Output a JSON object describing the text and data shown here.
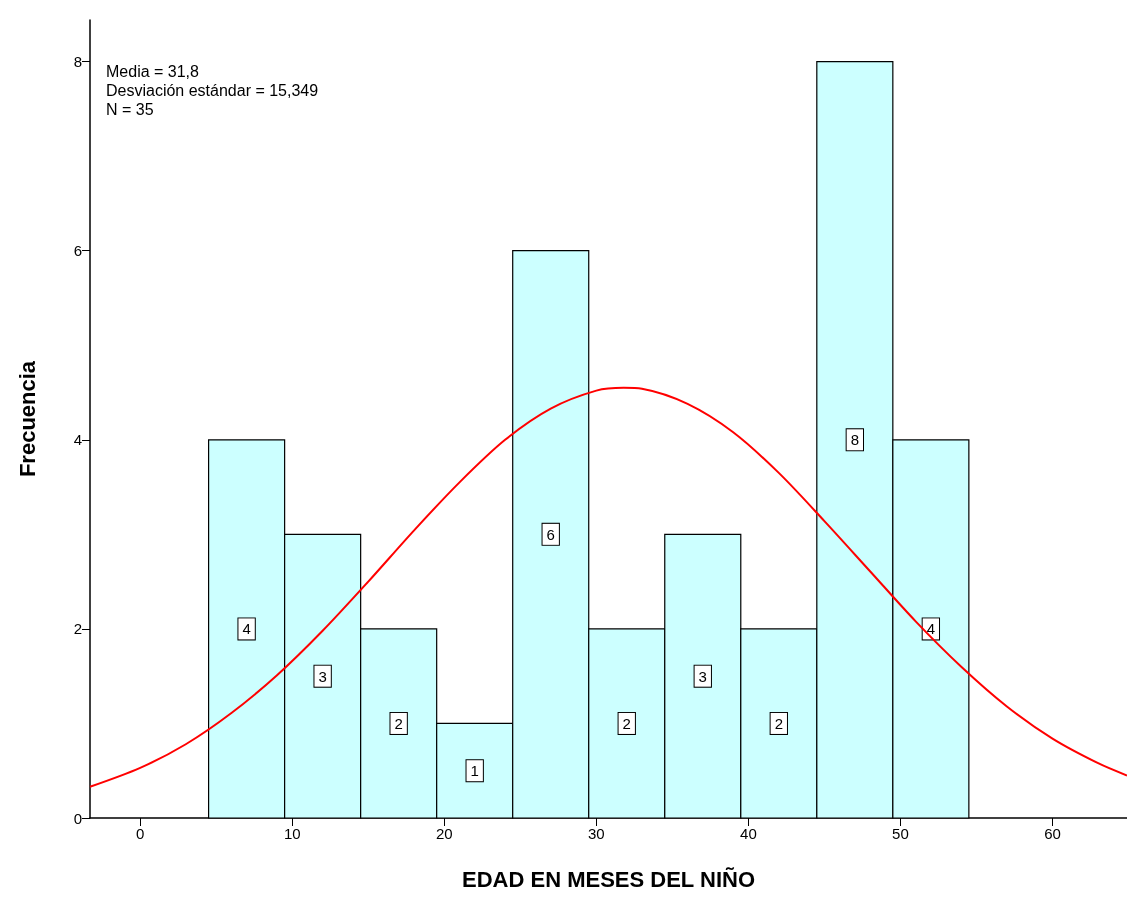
{
  "chart_data": {
    "type": "histogram",
    "xlabel": "EDAD EN MESES DEL NIÑO",
    "ylabel": "Frecuencia",
    "annotations": [
      "Media = 31,8",
      "Desviación estándar = 15,349",
      "N = 35"
    ],
    "bins": [
      4.5,
      9.5,
      14.5,
      19.5,
      24.5,
      29.5,
      34.5,
      39.5,
      44.5,
      49.5,
      54.5
    ],
    "values": [
      4,
      3,
      2,
      1,
      6,
      2,
      3,
      2,
      8,
      4
    ],
    "color": "#ccffff",
    "value_labels": [
      "4",
      "3",
      "2",
      "1",
      "6",
      "2",
      "3",
      "2",
      "8",
      "4"
    ],
    "series": [
      {
        "type": "line",
        "color": "#ff0000",
        "x": [
          -3.3,
          0,
          3,
          6,
          9,
          12,
          15,
          18,
          21,
          24,
          27,
          30,
          31.8,
          33,
          36,
          39,
          42,
          45,
          48,
          51,
          54,
          57,
          60,
          63,
          64.9
        ],
        "values": [
          0.33,
          0.53,
          0.78,
          1.11,
          1.51,
          1.98,
          2.5,
          3.04,
          3.55,
          4.0,
          4.33,
          4.52,
          4.55,
          4.54,
          4.38,
          4.08,
          3.65,
          3.14,
          2.61,
          2.08,
          1.6,
          1.18,
          0.84,
          0.58,
          0.45
        ]
      }
    ],
    "xlim": [
      -3.3,
      64.9
    ],
    "xticks": [
      0,
      10,
      20,
      30,
      40,
      50,
      60
    ],
    "ylim": [
      0,
      8.44
    ],
    "yticks": [
      0,
      2,
      4,
      6,
      8
    ],
    "grid": false,
    "marker": "none",
    "line_style": "solid"
  }
}
